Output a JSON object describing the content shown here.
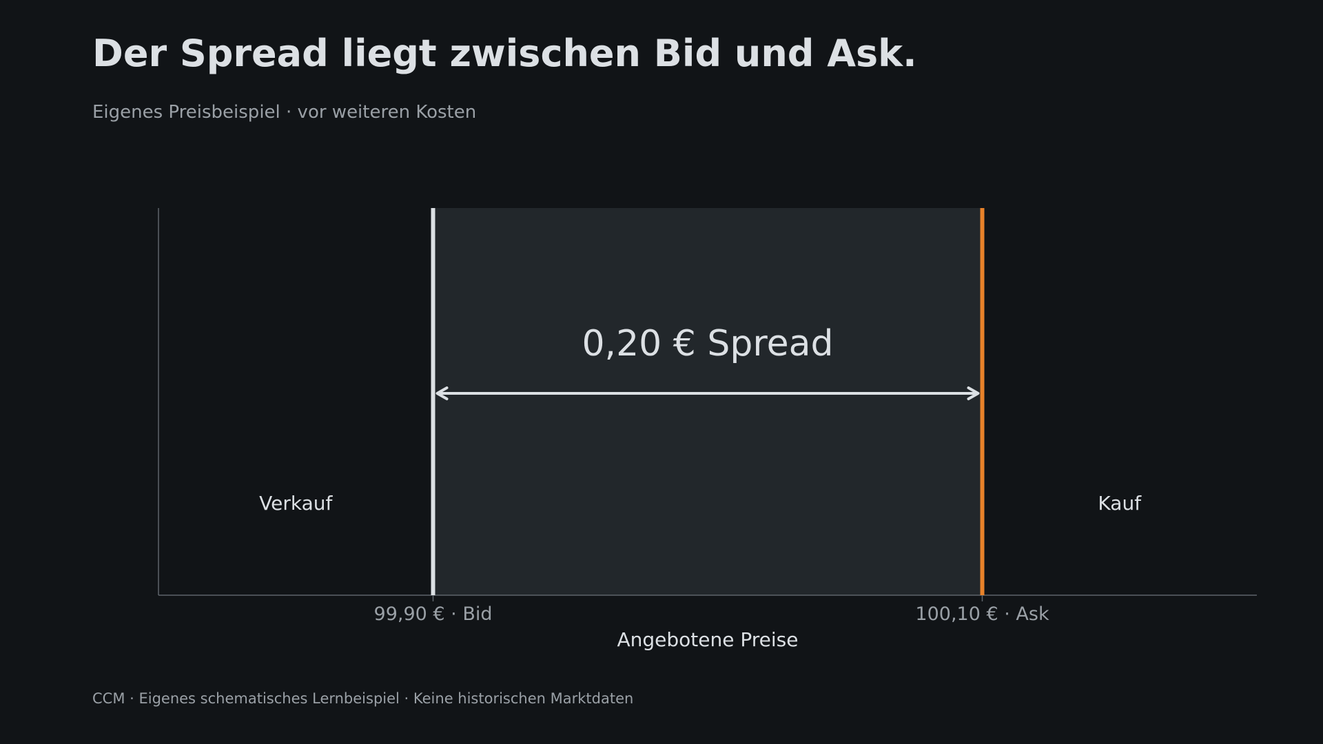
{
  "page": {
    "title": "Der Spread liegt zwischen Bid und Ask.",
    "subtitle": "Eigenes Preisbeispiel · vor weiteren Kosten",
    "footer": "CCM · Eigenes schematisches Lernbeispiel · Keine historischen Marktdaten"
  },
  "chart_data": {
    "type": "bar",
    "title": "Der Spread liegt zwischen Bid und Ask.",
    "subtitle": "Eigenes Preisbeispiel · vor weiteren Kosten",
    "xlabel": "Angebotene Preise",
    "ylabel": "",
    "xlim": [
      99.8,
      100.2
    ],
    "grid": false,
    "prices": [
      {
        "value": 99.9,
        "tick_label": "99,90 € · Bid",
        "color": "#dce0e4"
      },
      {
        "value": 100.1,
        "tick_label": "100,10 € · Ask",
        "color": "#e8822a"
      }
    ],
    "spread": {
      "from": 99.9,
      "to": 100.1,
      "label": "0,20 € Spread",
      "fill": "#22272b"
    },
    "regions": [
      {
        "label": "Verkauf",
        "center": 99.85
      },
      {
        "label": "Kauf",
        "center": 100.15
      }
    ],
    "colors": {
      "background": "#111417",
      "axis": "#5f656b",
      "text": "#dce0e4",
      "muted": "#9aa0a6",
      "bid": "#dce0e4",
      "ask": "#e8822a",
      "arrow": "#dce0e4"
    }
  }
}
